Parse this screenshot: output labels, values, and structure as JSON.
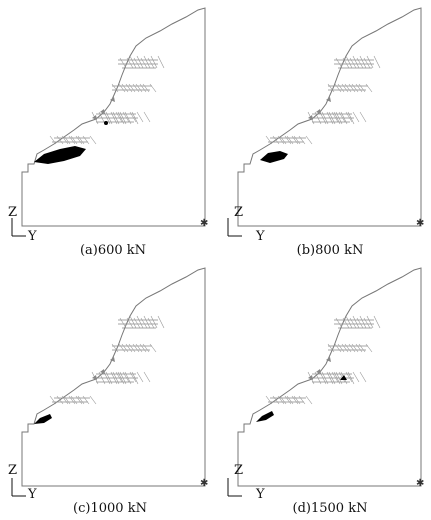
{
  "figure": {
    "panels": [
      {
        "id": "a",
        "caption": "(a)600 kN",
        "axis_vertical": "Z",
        "axis_horizontal": "Y"
      },
      {
        "id": "b",
        "caption": "(b)800 kN",
        "axis_vertical": "Z",
        "axis_horizontal": "Y"
      },
      {
        "id": "c",
        "caption": "(c)1000 kN",
        "axis_vertical": "Z",
        "axis_horizontal": "Y"
      },
      {
        "id": "d",
        "caption": "(d)1500 kN",
        "axis_vertical": "Z",
        "axis_horizontal": "Y"
      }
    ]
  }
}
